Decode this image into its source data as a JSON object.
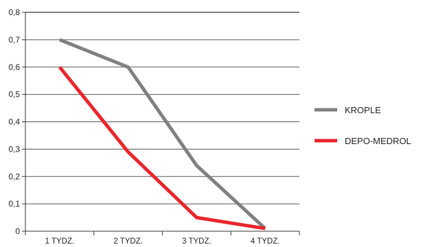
{
  "chart_data": {
    "type": "line",
    "title": "",
    "xlabel": "",
    "ylabel": "",
    "categories": [
      "1 TYDZ.",
      "2 TYDZ.",
      "3 TYDZ.",
      "4 TYDZ."
    ],
    "ylim": [
      0,
      0.8
    ],
    "yticks": [
      0,
      0.1,
      0.2,
      0.3,
      0.4,
      0.5,
      0.6,
      0.7,
      0.8
    ],
    "ytick_labels": [
      "0",
      "0,1",
      "0,2",
      "0,3",
      "0,4",
      "0,5",
      "0,6",
      "0,7",
      "0,8"
    ],
    "grid": true,
    "legend_position": "right",
    "series": [
      {
        "name": "KROPLE",
        "color": "#808080",
        "values": [
          0.7,
          0.6,
          0.24,
          0.01
        ]
      },
      {
        "name": "DEPO-MEDROL",
        "color": "#e8262c",
        "values": [
          0.6,
          0.29,
          0.05,
          0.01
        ]
      }
    ]
  }
}
